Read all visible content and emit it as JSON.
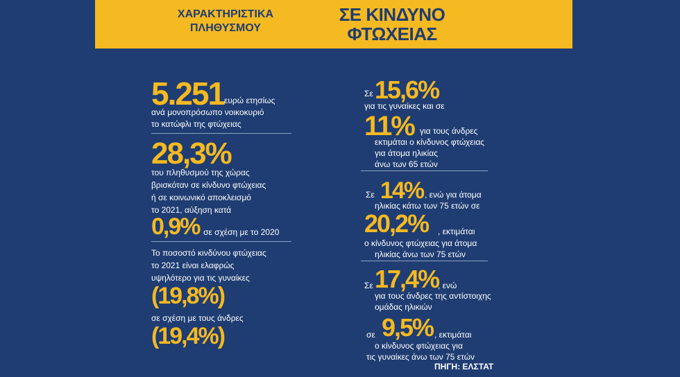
{
  "banner": {
    "subtitle": [
      "ΧΑΡΑΚΤΗΡΙΣΤΙΚΑ",
      "ΠΛΗΘΥΣΜΟΥ"
    ],
    "title": [
      "ΣΕ ΚΙΝΔΥΝΟ",
      "ΦΤΩΧΕΙΑΣ"
    ]
  },
  "left": [
    "5.251",
    "ευρώ ετησίως",
    "ανά μονοπρόσωπο νοικοκυριό",
    "το κατώφλι της φτώχειας",
    "28,3%",
    "του πληθυσμού της χώρας",
    "βρισκόταν σε κίνδυνο φτώχειας",
    "ή σε κοινωνικό αποκλεισμό",
    "το 2021,  αύξηση κατά",
    "0,9%",
    "σε σχέση με το 2020",
    "Το ποσοστό κινδύνου φτώχειας",
    "το 2021 είναι ελαφρώς",
    "υψηλότερο για τις γυναίκες",
    "(19,8%)",
    "σε σχέση  με τους άνδρες",
    "(19,4%)"
  ],
  "right": [
    "Σε",
    "15,6%",
    "για τις γυναίκες και σε",
    "11%",
    "για τους άνδρες",
    "εκτιμάται ο κίνδυνος φτώχειας",
    "για άτομα ηλικίας",
    "άνω των 65 ετών",
    "Σε",
    "14%",
    ", ενώ για άτομα",
    "ηλικίας κάτω των 75 ετών σε",
    "20,2%",
    ", εκτιμάται",
    "ο κίνδυνος φτώχειας για άτομα",
    "ηλικίας άνω των 75 ετών",
    "Σε",
    "17,4%",
    ", ενώ",
    "για τους άνδρες της αντίστοιχης",
    "ομάδας ηλικιών",
    "σε",
    "9,5%",
    ", εκτιμάται",
    "ο κίνδυνος φτώχειας για",
    "τις γυναίκες άνω των 75 ετών"
  ],
  "source": "ΠΗΓΗ: ΕΛΣΤΑΤ"
}
